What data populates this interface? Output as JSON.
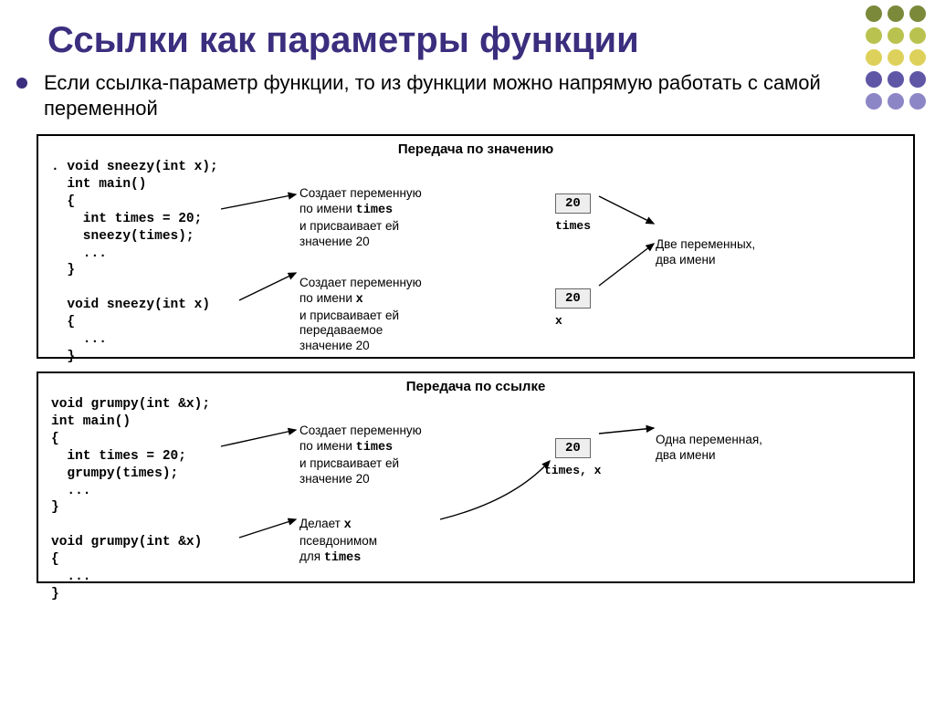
{
  "title": "Ссылки как параметры функции",
  "subtitle_prefix": "Если ссылка-параметр функции, то из функции можно напрямую работать с самой переменной",
  "dots_colors": [
    "#7a8a3a",
    "#7a8a3a",
    "#7a8a3a",
    "#b9c24e",
    "#b9c24e",
    "#b9c24e",
    "#ded15b",
    "#ded15b",
    "#ded15b",
    "#5f56a6",
    "#5f56a6",
    "#5f56a6",
    "#8d86c6",
    "#8d86c6",
    "#8d86c6"
  ],
  "panel1": {
    "title": "Передача по значению",
    "code": ". void sneezy(int x);\n  int main()\n  {\n    int times = 20;\n    sneezy(times);\n    ...\n  }\n\n  void sneezy(int x)\n  {\n    ...\n  }",
    "mid1_l1": "Создает переменную",
    "mid1_l2a": "по имени ",
    "mid1_l2b": "times",
    "mid1_l3": "и присваивает ей",
    "mid1_l4": "значение 20",
    "mid2_l1": "Создает переменную",
    "mid2_l2a": "по имени ",
    "mid2_l2b": "x",
    "mid2_l3": "и присваивает ей",
    "mid2_l4": "передаваемое",
    "mid2_l5": "значение 20",
    "box1_val": "20",
    "box1_cap": "times",
    "box2_val": "20",
    "box2_cap": "x",
    "right_l1": "Две переменных,",
    "right_l2": "два имени"
  },
  "panel2": {
    "title": "Передача по ссылке",
    "code": "void grumpy(int &x);\nint main()\n{\n  int times = 20;\n  grumpy(times);\n  ...\n}\n\nvoid grumpy(int &x)\n{\n  ...\n}",
    "mid1_l1": "Создает переменную",
    "mid1_l2a": "по имени ",
    "mid1_l2b": "times",
    "mid1_l3": "и присваивает ей",
    "mid1_l4": "значение 20",
    "mid2_l1a": "Делает ",
    "mid2_l1b": "x",
    "mid2_l2": "псевдонимом",
    "mid2_l3a": "для ",
    "mid2_l3b": "times",
    "box_val": "20",
    "box_cap": "times, x",
    "right_l1": "Одна переменная,",
    "right_l2": "два имени"
  }
}
